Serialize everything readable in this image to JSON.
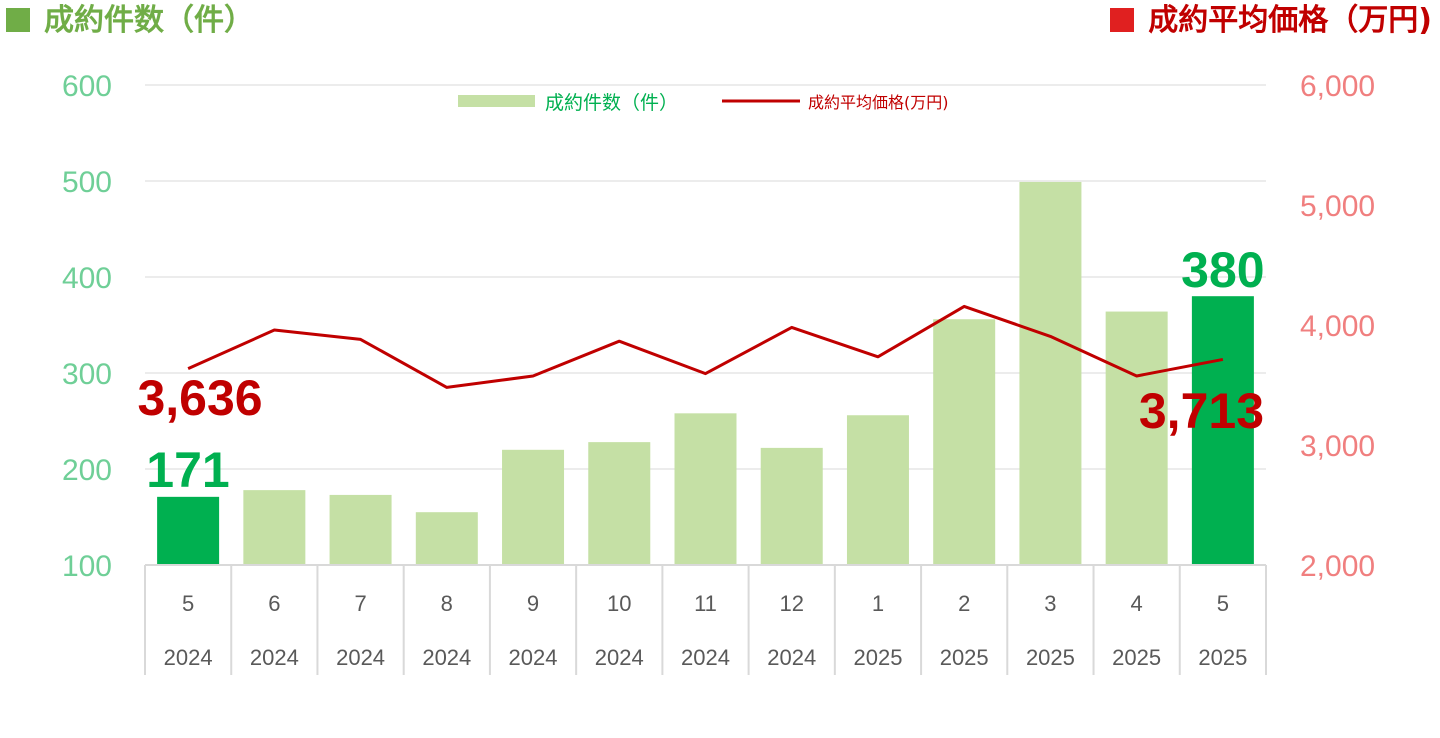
{
  "header": {
    "left_title": "成約件数（件）",
    "left_color": "#70ad47",
    "right_title": "成約平均価格（万円)",
    "right_color": "#c00000"
  },
  "legend": {
    "bar_label": "成約件数（件）",
    "line_label": "成約平均価格(万円)",
    "placement": "top-center"
  },
  "colors": {
    "bar": "#c5e0a5",
    "bar_highlight": "#00b050",
    "line": "#c00000",
    "left_axis_text": "#6fcf97",
    "right_axis_text": "#f07f7f",
    "legend_bar_text": "#00b050",
    "legend_line_text": "#c00000"
  },
  "chart_data": {
    "type": "bar",
    "categories": [
      {
        "month": "5",
        "year": "2024"
      },
      {
        "month": "6",
        "year": "2024"
      },
      {
        "month": "7",
        "year": "2024"
      },
      {
        "month": "8",
        "year": "2024"
      },
      {
        "month": "9",
        "year": "2024"
      },
      {
        "month": "10",
        "year": "2024"
      },
      {
        "month": "11",
        "year": "2024"
      },
      {
        "month": "12",
        "year": "2024"
      },
      {
        "month": "1",
        "year": "2025"
      },
      {
        "month": "2",
        "year": "2025"
      },
      {
        "month": "3",
        "year": "2025"
      },
      {
        "month": "4",
        "year": "2025"
      },
      {
        "month": "5",
        "year": "2025"
      }
    ],
    "series": [
      {
        "name": "成約件数（件）",
        "type": "bar",
        "axis": "left",
        "values": [
          171,
          178,
          173,
          155,
          220,
          228,
          258,
          222,
          256,
          356,
          499,
          364,
          380
        ]
      },
      {
        "name": "成約平均価格(万円)",
        "type": "line",
        "axis": "right",
        "values": [
          3636,
          3958,
          3880,
          3480,
          3575,
          3865,
          3595,
          3980,
          3735,
          4155,
          3905,
          3575,
          3713
        ]
      }
    ],
    "highlight_indices": [
      0,
      12
    ],
    "left_axis": {
      "ylim": [
        100,
        600
      ],
      "ticks": [
        "100",
        "200",
        "300",
        "400",
        "500",
        "600"
      ]
    },
    "right_axis": {
      "ylim": [
        2000,
        6000
      ],
      "ticks": [
        "2,000",
        "3,000",
        "4,000",
        "5,000",
        "6,000"
      ]
    },
    "gridlines": true,
    "annotations": [
      {
        "text": "3,636",
        "series": "line",
        "index": 0
      },
      {
        "text": "171",
        "series": "bar",
        "index": 0
      },
      {
        "text": "380",
        "series": "bar",
        "index": 12
      },
      {
        "text": "3,713",
        "series": "line",
        "index": 12
      }
    ]
  }
}
